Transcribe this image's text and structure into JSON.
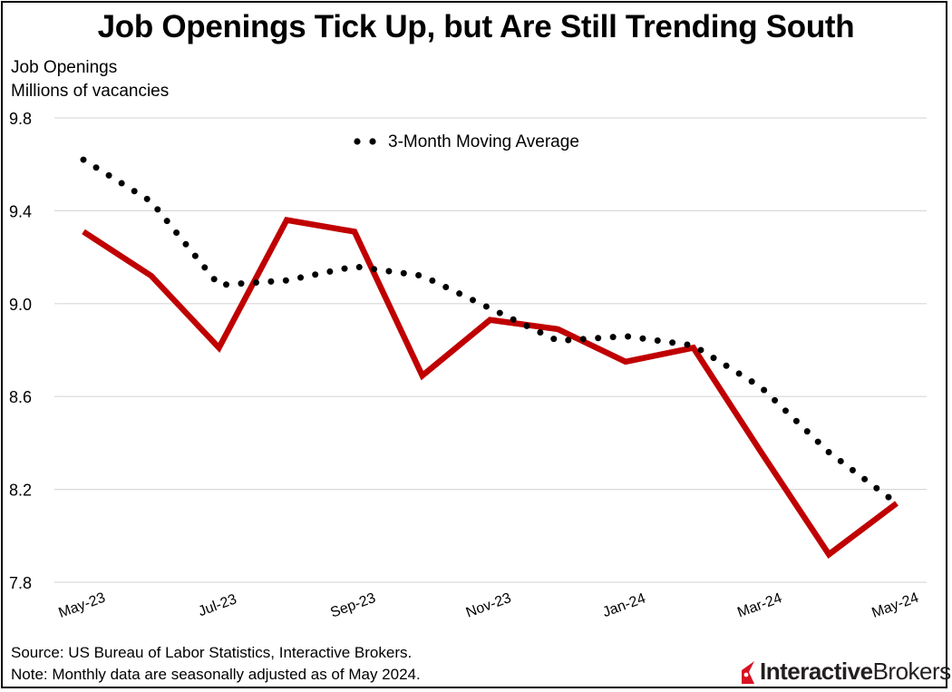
{
  "chart_data": {
    "type": "line",
    "title": "Job Openings Tick Up, but Are Still Trending South",
    "ylabel_lines": [
      "Job Openings",
      "Millions of vacancies"
    ],
    "xlabel": "",
    "x": [
      "May-23",
      "Jun-23",
      "Jul-23",
      "Aug-23",
      "Sep-23",
      "Oct-23",
      "Nov-23",
      "Dec-23",
      "Jan-24",
      "Feb-24",
      "Mar-24",
      "Apr-24",
      "May-24"
    ],
    "x_tick_labels": [
      "May-23",
      "Jul-23",
      "Sep-23",
      "Nov-23",
      "Jan-24",
      "Mar-24",
      "May-24"
    ],
    "x_tick_indices": [
      0,
      2,
      4,
      6,
      8,
      10,
      12
    ],
    "yticks": [
      "9.8",
      "9.4",
      "9.0",
      "8.6",
      "8.2",
      "7.8"
    ],
    "ylim": [
      7.8,
      9.8
    ],
    "grid": true,
    "series": [
      {
        "name": "",
        "style": "solid",
        "color": "#c00000",
        "values": [
          9.31,
          9.12,
          8.81,
          9.36,
          9.31,
          8.69,
          8.93,
          8.89,
          8.75,
          8.81,
          8.36,
          7.92,
          8.14
        ]
      },
      {
        "name": "3-Month Moving Average",
        "style": "dotted",
        "color": "#000000",
        "values": [
          9.62,
          9.44,
          9.08,
          9.1,
          9.16,
          9.12,
          8.98,
          8.84,
          8.86,
          8.82,
          8.64,
          8.36,
          8.14
        ]
      }
    ],
    "legend_position": "top-center"
  },
  "footer": {
    "source": "Source: US Bureau of Labor Statistics, Interactive Brokers.",
    "note": "Note: Monthly data are seasonally adjusted as of May 2024."
  },
  "brand": {
    "name_bold": "Interactive",
    "name_regular": "Brokers",
    "logo_icon": "ib-logo-icon",
    "logo_color": "#d81222"
  }
}
